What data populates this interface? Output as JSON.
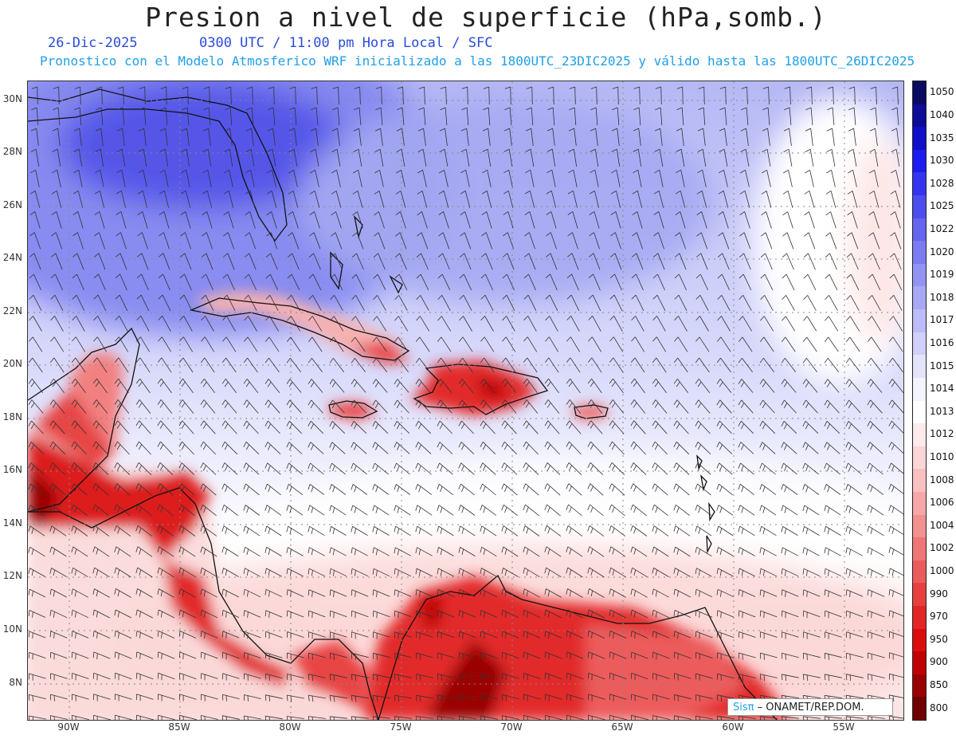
{
  "header": {
    "title": "Presion a nivel de superficie (hPa,somb.)",
    "date": "26-Dic-2025",
    "time_info": "0300 UTC / 11:00 pm Hora Local / SFC",
    "model_info": "Pronostico con el Modelo Atmosferico WRF inicializado a las 1800UTC_23DIC2025 y válido hasta las  1800UTC_26DIC2025"
  },
  "map": {
    "lat_labels": [
      "30N",
      "28N",
      "26N",
      "24N",
      "22N",
      "20N",
      "18N",
      "16N",
      "14N",
      "12N",
      "10N",
      "8N"
    ],
    "lon_labels": [
      "90W",
      "85W",
      "80W",
      "75W",
      "70W",
      "65W",
      "60W",
      "55W"
    ],
    "grid_style": "dotted",
    "field": "surface pressure shading with wind barbs"
  },
  "colorbar": {
    "levels": [
      "1050",
      "1040",
      "1035",
      "1030",
      "1028",
      "1025",
      "1022",
      "1020",
      "1019",
      "1018",
      "1017",
      "1016",
      "1015",
      "1014",
      "1013",
      "1012",
      "1010",
      "1008",
      "1006",
      "1004",
      "1002",
      "1000",
      "990",
      "970",
      "950",
      "900",
      "850",
      "800"
    ],
    "colors": [
      "#0a0a60",
      "#0d0d98",
      "#1010c8",
      "#1c1cf0",
      "#3535f0",
      "#4d4df0",
      "#6565f0",
      "#7b7bf2",
      "#9393f4",
      "#a8a8f6",
      "#bcbcf8",
      "#d0d0fa",
      "#e3e3fc",
      "#f4f4fe",
      "#ffffff",
      "#fdeaea",
      "#fbd6d6",
      "#f9c0c0",
      "#f6a8a8",
      "#f39090",
      "#f07676",
      "#ec5b5b",
      "#e84040",
      "#e42525",
      "#dd0c0c",
      "#bf0000",
      "#9a0000",
      "#700000"
    ]
  },
  "credit": {
    "logo": "Sisπ",
    "text": "– ONAMET/REP.DOM."
  }
}
